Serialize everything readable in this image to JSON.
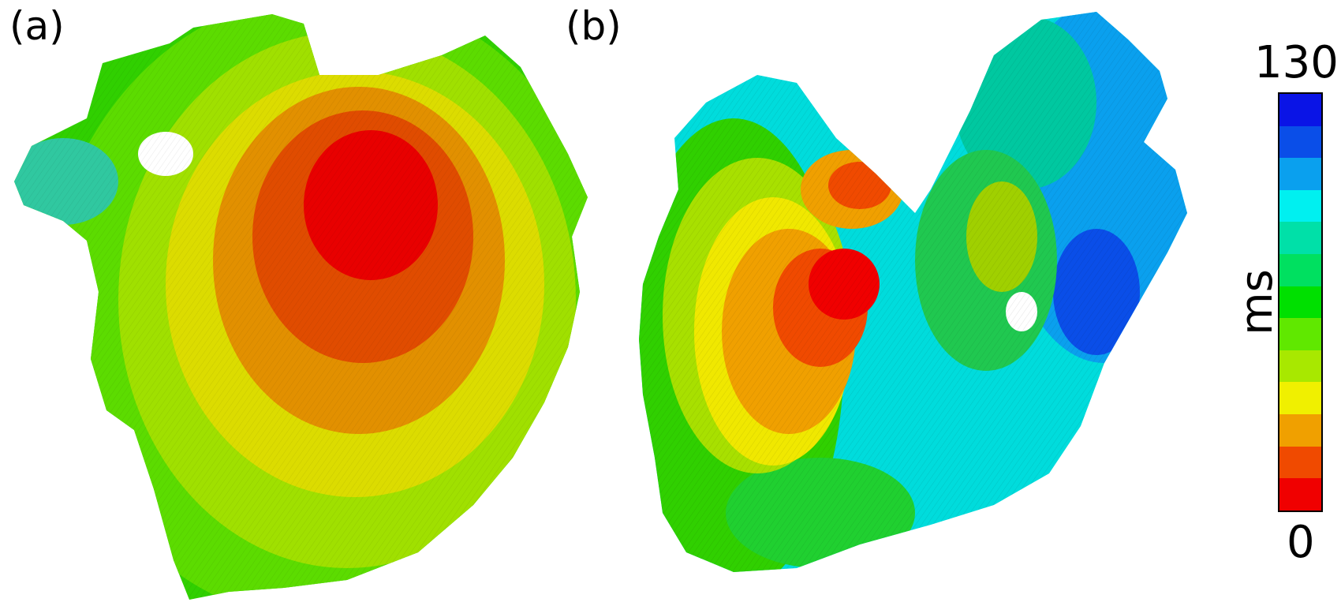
{
  "panels": {
    "a": {
      "label": "(a)"
    },
    "b": {
      "label": "(b)"
    }
  },
  "colorbar": {
    "max_label": "130",
    "min_label": "0",
    "unit": "ms",
    "colors_top_to_bottom": [
      "#0a14e6",
      "#0a4ee8",
      "#0aa0ee",
      "#00f0f0",
      "#00e0a8",
      "#00e060",
      "#00e000",
      "#60e800",
      "#a8e800",
      "#f0f000",
      "#f0a000",
      "#f04a00",
      "#f00000"
    ]
  }
}
